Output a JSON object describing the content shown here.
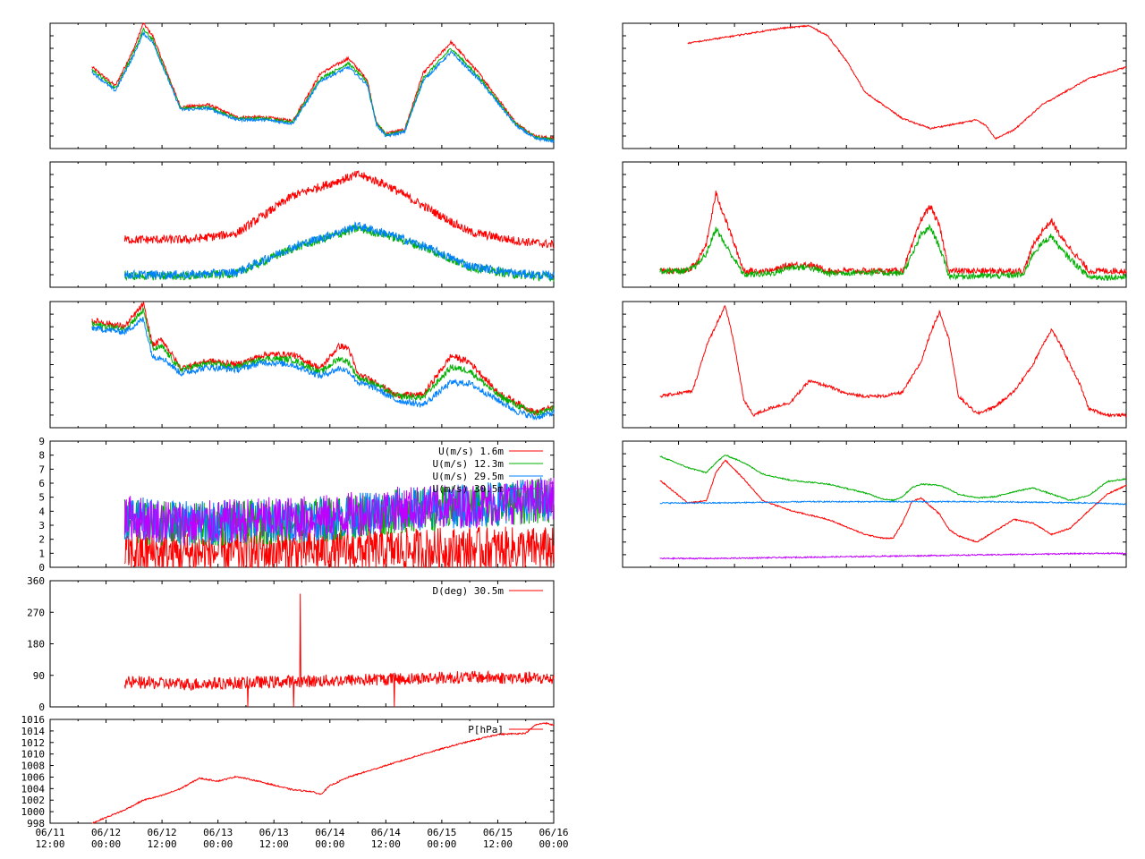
{
  "time_axis": {
    "ticks": [
      "06/11\n12:00",
      "06/12\n00:00",
      "06/12\n12:00",
      "06/13\n00:00",
      "06/13\n12:00",
      "06/14\n00:00",
      "06/14\n12:00",
      "06/15\n00:00",
      "06/15\n12:00",
      "06/16\n00:00"
    ],
    "range_hours": [
      0,
      108
    ]
  },
  "colors": {
    "red": "#ff0000",
    "green": "#00b000",
    "blue": "#0080ff",
    "purple": "#c000ff"
  },
  "chart_data": [
    {
      "id": "temp-profile",
      "type": "line",
      "column": "left",
      "row": 0,
      "title": "",
      "xlabel": "",
      "ylabel": "",
      "ylim": [
        0,
        10
      ],
      "ytick_labels": false,
      "grid": false,
      "series": [
        {
          "color": "#ff0000",
          "x": [
            9,
            14,
            18,
            20,
            22,
            28,
            34,
            40,
            46,
            52,
            58,
            64,
            68,
            70,
            72,
            76,
            80,
            86,
            92,
            100,
            104,
            108
          ],
          "y": [
            6.5,
            5,
            8,
            10,
            9,
            3.3,
            3.5,
            2.5,
            2.5,
            2.2,
            6,
            7.2,
            5.5,
            2,
            1.2,
            1.5,
            6,
            8.5,
            6,
            2,
            1,
            0.8
          ]
        },
        {
          "color": "#00b000",
          "x": [
            9,
            14,
            18,
            20,
            22,
            28,
            34,
            40,
            46,
            52,
            58,
            64,
            68,
            70,
            72,
            76,
            80,
            86,
            92,
            100,
            104,
            108
          ],
          "y": [
            6.3,
            4.8,
            7.7,
            9.5,
            8.7,
            3.2,
            3.3,
            2.4,
            2.4,
            2.1,
            5.6,
            6.8,
            5.3,
            2,
            1.1,
            1.4,
            5.6,
            8,
            5.7,
            1.9,
            0.9,
            0.7
          ]
        },
        {
          "color": "#0080ff",
          "x": [
            9,
            14,
            18,
            20,
            22,
            28,
            34,
            40,
            46,
            52,
            58,
            64,
            68,
            70,
            72,
            76,
            80,
            86,
            92,
            100,
            104,
            108
          ],
          "y": [
            6.1,
            4.6,
            7.5,
            9.2,
            8.5,
            3.1,
            3.2,
            2.3,
            2.3,
            2,
            5.4,
            6.5,
            5.1,
            1.9,
            1,
            1.3,
            5.4,
            7.7,
            5.5,
            1.8,
            0.8,
            0.6
          ]
        }
      ]
    },
    {
      "id": "humidity-profile",
      "type": "line",
      "column": "left",
      "row": 1,
      "title": "",
      "xlabel": "",
      "ylabel": "",
      "ylim": [
        0,
        10
      ],
      "ytick_labels": false,
      "grid": false,
      "series": [
        {
          "color": "#ff0000",
          "x": [
            16,
            30,
            40,
            52,
            66,
            72,
            80,
            90,
            100,
            108
          ],
          "y": [
            3.8,
            3.8,
            4.3,
            7.3,
            9,
            8.2,
            6.5,
            4.4,
            3.7,
            3.4
          ]
        },
        {
          "color": "#00b000",
          "x": [
            16,
            30,
            40,
            52,
            66,
            72,
            80,
            90,
            100,
            108
          ],
          "y": [
            0.9,
            0.9,
            1.1,
            3.1,
            4.7,
            4.2,
            3.2,
            1.6,
            1,
            0.8
          ]
        },
        {
          "color": "#0080ff",
          "x": [
            16,
            30,
            40,
            52,
            66,
            72,
            80,
            90,
            100,
            108
          ],
          "y": [
            1,
            1,
            1.2,
            3.2,
            4.9,
            4.3,
            3.3,
            1.7,
            1.1,
            0.9
          ]
        }
      ]
    },
    {
      "id": "temp-profile-2",
      "type": "line",
      "column": "left",
      "row": 2,
      "title": "",
      "xlabel": "",
      "ylabel": "",
      "ylim": [
        0,
        10
      ],
      "ytick_labels": false,
      "grid": false,
      "series": [
        {
          "color": "#ff0000",
          "x": [
            9,
            16,
            20,
            22,
            24,
            28,
            34,
            40,
            46,
            52,
            58,
            62,
            64,
            66,
            70,
            74,
            80,
            86,
            90,
            96,
            100,
            104,
            108
          ],
          "y": [
            8.5,
            8,
            9.8,
            6.5,
            7,
            4.7,
            5.3,
            5,
            5.8,
            5.8,
            4.7,
            6.5,
            6.3,
            4.2,
            3.6,
            2.6,
            2.6,
            5.7,
            5.2,
            2.8,
            2,
            1.2,
            1.6
          ]
        },
        {
          "color": "#00b000",
          "x": [
            9,
            16,
            20,
            22,
            24,
            28,
            34,
            40,
            46,
            52,
            58,
            62,
            64,
            66,
            70,
            74,
            80,
            86,
            90,
            96,
            100,
            104,
            108
          ],
          "y": [
            8.2,
            7.8,
            9.3,
            6.2,
            6.4,
            4.6,
            5.1,
            4.8,
            5.5,
            5.4,
            4.4,
            5.5,
            5.2,
            4,
            3.4,
            2.5,
            2.4,
            4.8,
            4.5,
            2.6,
            1.8,
            1.1,
            1.5
          ]
        },
        {
          "color": "#0080ff",
          "x": [
            9,
            16,
            20,
            22,
            24,
            28,
            34,
            40,
            46,
            52,
            58,
            62,
            64,
            66,
            70,
            74,
            80,
            86,
            90,
            96,
            100,
            104,
            108
          ],
          "y": [
            7.9,
            7.6,
            8.6,
            5.6,
            5.6,
            4.3,
            4.8,
            4.6,
            5.2,
            5,
            4.1,
            4.7,
            4.5,
            3.6,
            3.1,
            2.2,
            1.8,
            3.6,
            3.5,
            2.2,
            1.3,
            0.8,
            1.2
          ]
        }
      ]
    },
    {
      "id": "wind-speed",
      "type": "line",
      "column": "left",
      "row": 3,
      "title": "",
      "xlabel": "",
      "ylabel": "",
      "ylim": [
        0,
        9
      ],
      "ytick_labels": true,
      "grid": false,
      "yticks": [
        0,
        1,
        2,
        3,
        4,
        5,
        6,
        7,
        8,
        9
      ],
      "legend_position": "top-right",
      "series": [
        {
          "name": "U(m/s)  1.6m",
          "color": "#ff0000",
          "x": [
            16,
            30,
            45,
            60,
            75,
            90,
            108
          ],
          "y": [
            1,
            1,
            1.1,
            1.2,
            1.2,
            1.3,
            1.3
          ]
        },
        {
          "name": "U(m/s) 12.3m",
          "color": "#00b000",
          "x": [
            16,
            30,
            45,
            60,
            75,
            90,
            108
          ],
          "y": [
            3.3,
            3,
            3.2,
            3.4,
            4,
            4.3,
            4.8
          ]
        },
        {
          "name": "U(m/s) 29.5m",
          "color": "#0080ff",
          "x": [
            16,
            30,
            45,
            60,
            75,
            90,
            108
          ],
          "y": [
            3.5,
            3.1,
            3.3,
            3.5,
            4.1,
            4.4,
            4.9
          ]
        },
        {
          "name": "U(m/s) 30.5m",
          "color": "#c000ff",
          "x": [
            16,
            30,
            45,
            60,
            75,
            90,
            108
          ],
          "y": [
            3.6,
            3.1,
            3.4,
            3.6,
            4.2,
            4.4,
            4.9
          ]
        }
      ]
    },
    {
      "id": "wind-direction",
      "type": "line",
      "column": "left",
      "row": 4,
      "title": "",
      "xlabel": "",
      "ylabel": "",
      "ylim": [
        0,
        360
      ],
      "ytick_labels": true,
      "grid": false,
      "yticks": [
        0,
        90,
        180,
        270,
        360
      ],
      "legend_position": "top-right",
      "series": [
        {
          "name": "D(deg)  30.5m",
          "color": "#ff0000",
          "x": [
            16,
            30,
            45,
            60,
            75,
            90,
            108
          ],
          "y": [
            70,
            65,
            70,
            75,
            80,
            85,
            80
          ]
        }
      ]
    },
    {
      "id": "pressure",
      "type": "line",
      "column": "left",
      "row": 5,
      "title": "",
      "xlabel": "",
      "ylabel": "",
      "ylim": [
        998,
        1016
      ],
      "ytick_labels": true,
      "grid": false,
      "yticks": [
        998,
        1000,
        1002,
        1004,
        1006,
        1008,
        1010,
        1012,
        1014,
        1016
      ],
      "legend_position": "top-right",
      "series": [
        {
          "name": "P[hPa]",
          "color": "#ff0000",
          "x": [
            9,
            12,
            16,
            20,
            24,
            28,
            32,
            36,
            40,
            44,
            48,
            52,
            56,
            58,
            60,
            64,
            72,
            80,
            88,
            96,
            102,
            104,
            106,
            108
          ],
          "y": [
            998,
            999,
            1000.3,
            1002,
            1002.8,
            1004,
            1005.8,
            1005.3,
            1006.1,
            1005.4,
            1004.6,
            1003.8,
            1003.5,
            1003,
            1004.5,
            1006,
            1008,
            1010,
            1011.8,
            1013.4,
            1013.6,
            1015,
            1015.4,
            1015
          ]
        }
      ]
    },
    {
      "id": "right-panel-1",
      "type": "line",
      "column": "right",
      "row": 0,
      "title": "",
      "xlabel": "",
      "ylabel": "",
      "ylim": [
        0,
        10
      ],
      "ytick_labels": false,
      "grid": false,
      "series": [
        {
          "color": "#ff0000",
          "x": [
            14,
            24,
            34,
            40,
            44,
            48,
            52,
            60,
            66,
            72,
            76,
            78,
            80,
            84,
            90,
            100,
            108
          ],
          "y": [
            8.4,
            9,
            9.6,
            9.8,
            9,
            7,
            4.5,
            2.4,
            1.6,
            2,
            2.3,
            1.8,
            0.8,
            1.5,
            3.5,
            5.6,
            6.5
          ]
        }
      ]
    },
    {
      "id": "right-panel-2",
      "type": "line",
      "column": "right",
      "row": 1,
      "title": "",
      "xlabel": "",
      "ylabel": "",
      "ylim": [
        0,
        10
      ],
      "ytick_labels": false,
      "grid": false,
      "series": [
        {
          "color": "#ff0000",
          "x": [
            8,
            14,
            16,
            18,
            20,
            22,
            26,
            32,
            36,
            40,
            44,
            52,
            60,
            62,
            64,
            66,
            68,
            70,
            74,
            80,
            86,
            88,
            90,
            92,
            94,
            100,
            108
          ],
          "y": [
            1.3,
            1.3,
            2,
            3.5,
            7.5,
            5.5,
            1.3,
            1.3,
            1.8,
            1.8,
            1.3,
            1.3,
            1.3,
            3.2,
            5.4,
            6.5,
            4.8,
            1.3,
            1.3,
            1.3,
            1.3,
            3.3,
            4.5,
            5.3,
            4,
            1.3,
            1.3
          ]
        },
        {
          "color": "#00b000",
          "x": [
            8,
            14,
            16,
            18,
            20,
            22,
            26,
            32,
            36,
            40,
            44,
            52,
            60,
            62,
            64,
            66,
            68,
            70,
            74,
            80,
            86,
            88,
            90,
            92,
            94,
            100,
            108
          ],
          "y": [
            1.3,
            1.3,
            1.8,
            2.7,
            4.7,
            3.4,
            1,
            1.1,
            1.6,
            1.6,
            1.1,
            1.2,
            1.1,
            2.5,
            4.2,
            4.8,
            3.2,
            0.9,
            0.9,
            0.9,
            1,
            2.7,
            3.5,
            4.1,
            3,
            0.8,
            0.8
          ]
        }
      ]
    },
    {
      "id": "right-panel-3",
      "type": "line",
      "column": "right",
      "row": 2,
      "title": "",
      "xlabel": "",
      "ylabel": "",
      "ylim": [
        0,
        10
      ],
      "ytick_labels": false,
      "grid": false,
      "series": [
        {
          "color": "#ff0000",
          "x": [
            8,
            15,
            18,
            22,
            24,
            26,
            28,
            32,
            36,
            40,
            44,
            48,
            52,
            56,
            60,
            64,
            66,
            68,
            70,
            72,
            76,
            80,
            84,
            88,
            90,
            92,
            94,
            98,
            100,
            104,
            108
          ],
          "y": [
            2.5,
            2.9,
            6.5,
            9.7,
            6.5,
            2.2,
            1,
            1.6,
            2,
            3.7,
            3.3,
            2.7,
            2.5,
            2.5,
            2.8,
            5.2,
            7.5,
            9.2,
            7,
            2.5,
            1.1,
            1.7,
            2.9,
            5,
            6.5,
            7.8,
            6.5,
            3.5,
            1.5,
            1,
            1
          ]
        }
      ]
    },
    {
      "id": "right-panel-4",
      "type": "line",
      "column": "right",
      "row": 3,
      "title": "",
      "xlabel": "",
      "ylabel": "",
      "ylim": [
        0,
        10
      ],
      "ytick_labels": false,
      "grid": false,
      "series": [
        {
          "color": "#ff0000",
          "x": [
            8,
            14,
            18,
            20,
            22,
            26,
            30,
            36,
            44,
            52,
            56,
            58,
            60,
            62,
            64,
            68,
            70,
            72,
            76,
            80,
            84,
            88,
            92,
            96,
            100,
            104,
            108
          ],
          "y": [
            6.9,
            5.1,
            5.3,
            7.5,
            8.5,
            7,
            5.3,
            4.5,
            3.8,
            2.6,
            2.3,
            2.3,
            3.5,
            5.2,
            5.5,
            4.2,
            3,
            2.5,
            2,
            2.9,
            3.8,
            3.5,
            2.6,
            3.1,
            4.5,
            5.8,
            6.5
          ]
        },
        {
          "color": "#00b000",
          "x": [
            8,
            14,
            18,
            20,
            22,
            26,
            30,
            36,
            44,
            52,
            56,
            58,
            60,
            62,
            64,
            68,
            70,
            72,
            76,
            80,
            84,
            88,
            92,
            96,
            100,
            104,
            108
          ],
          "y": [
            8.8,
            7.9,
            7.5,
            8.3,
            8.9,
            8.3,
            7.4,
            6.9,
            6.6,
            5.9,
            5.4,
            5.3,
            5.6,
            6.3,
            6.6,
            6.5,
            6.2,
            5.8,
            5.5,
            5.6,
            6,
            6.3,
            5.8,
            5.3,
            5.7,
            6.8,
            7
          ]
        },
        {
          "color": "#0080ff",
          "x": [
            8,
            20,
            40,
            60,
            80,
            100,
            108
          ],
          "y": [
            5.1,
            5.1,
            5.2,
            5.2,
            5.2,
            5.1,
            5
          ]
        },
        {
          "color": "#c000ff",
          "x": [
            8,
            20,
            40,
            60,
            80,
            100,
            108
          ],
          "y": [
            0.7,
            0.7,
            0.8,
            0.9,
            1,
            1.1,
            1.1
          ]
        }
      ]
    }
  ]
}
